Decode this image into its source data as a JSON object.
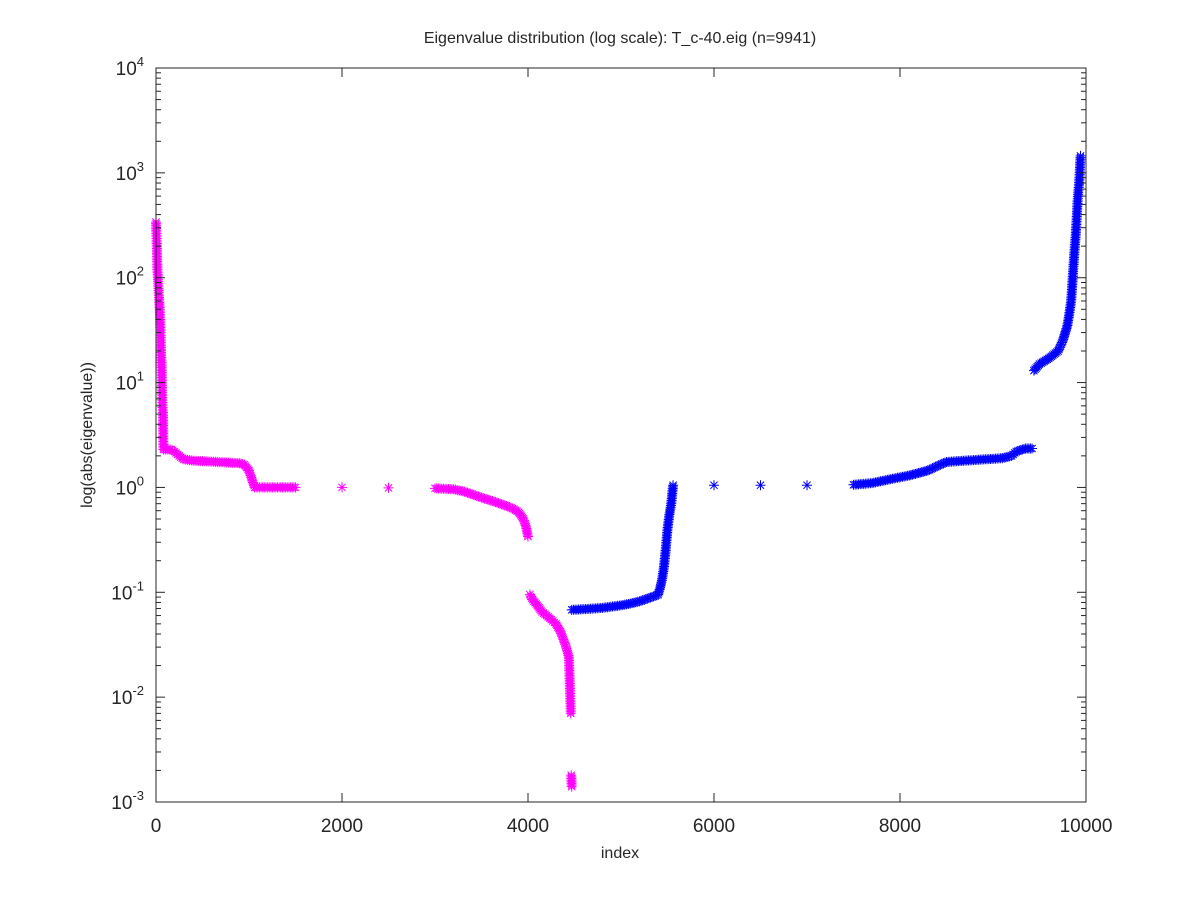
{
  "chart_data": {
    "type": "scatter",
    "title": "Eigenvalue distribution (log scale): T_c-40.eig (n=9941)",
    "xlabel": "index",
    "ylabel": "log(abs(eigenvalue))",
    "xlim": [
      0,
      10000
    ],
    "ylim": [
      0.001,
      10000
    ],
    "yscale": "log",
    "marker": "asterisk",
    "grid": false,
    "legend": "none",
    "xticks": [
      {
        "value": 0,
        "label": "0"
      },
      {
        "value": 2000,
        "label": "2000"
      },
      {
        "value": 4000,
        "label": "4000"
      },
      {
        "value": 6000,
        "label": "6000"
      },
      {
        "value": 8000,
        "label": "8000"
      },
      {
        "value": 10000,
        "label": "10000"
      }
    ],
    "yticks": [
      {
        "value": 0.001,
        "base": "10",
        "exp": "-3"
      },
      {
        "value": 0.01,
        "base": "10",
        "exp": "-2"
      },
      {
        "value": 0.1,
        "base": "10",
        "exp": "-1"
      },
      {
        "value": 1,
        "base": "10",
        "exp": "0"
      },
      {
        "value": 10,
        "base": "10",
        "exp": "1"
      },
      {
        "value": 100,
        "base": "10",
        "exp": "2"
      },
      {
        "value": 1000,
        "base": "10",
        "exp": "3"
      },
      {
        "value": 10000,
        "base": "10",
        "exp": "4"
      }
    ],
    "series": [
      {
        "color": "#ff00ff",
        "points": [
          [
            0,
            340
          ],
          [
            10,
            190
          ],
          [
            15,
            120
          ],
          [
            20,
            100
          ],
          [
            25,
            85
          ],
          [
            30,
            70
          ],
          [
            35,
            60
          ],
          [
            40,
            50
          ],
          [
            45,
            40
          ],
          [
            50,
            28
          ],
          [
            55,
            18
          ],
          [
            60,
            15
          ],
          [
            65,
            9
          ],
          [
            70,
            6
          ],
          [
            75,
            5
          ],
          [
            80,
            2.3
          ],
          [
            120,
            2.3
          ],
          [
            160,
            2.3
          ],
          [
            200,
            2.2
          ],
          [
            250,
            2.0
          ],
          [
            300,
            1.85
          ],
          [
            400,
            1.8
          ],
          [
            500,
            1.78
          ],
          [
            600,
            1.76
          ],
          [
            700,
            1.74
          ],
          [
            800,
            1.72
          ],
          [
            900,
            1.7
          ],
          [
            950,
            1.65
          ],
          [
            1000,
            1.45
          ],
          [
            1030,
            1.2
          ],
          [
            1060,
            1.0
          ],
          [
            1200,
            1.0
          ],
          [
            1500,
            1.0
          ],
          [
            2000,
            1.0
          ],
          [
            2500,
            0.99
          ],
          [
            3000,
            0.98
          ],
          [
            3200,
            0.96
          ],
          [
            3300,
            0.92
          ],
          [
            3400,
            0.86
          ],
          [
            3500,
            0.8
          ],
          [
            3600,
            0.75
          ],
          [
            3700,
            0.7
          ],
          [
            3800,
            0.65
          ],
          [
            3850,
            0.62
          ],
          [
            3900,
            0.58
          ],
          [
            3950,
            0.5
          ],
          [
            3980,
            0.42
          ],
          [
            4000,
            0.34
          ],
          [
            4020,
            0.095
          ],
          [
            4050,
            0.085
          ],
          [
            4100,
            0.075
          ],
          [
            4150,
            0.065
          ],
          [
            4200,
            0.06
          ],
          [
            4250,
            0.055
          ],
          [
            4300,
            0.05
          ],
          [
            4350,
            0.042
          ],
          [
            4400,
            0.032
          ],
          [
            4420,
            0.028
          ],
          [
            4440,
            0.024
          ],
          [
            4450,
            0.013
          ],
          [
            4460,
            0.007
          ],
          [
            4465,
            0.0018
          ],
          [
            4470,
            0.0014
          ]
        ]
      },
      {
        "color": "#0000ff",
        "points": [
          [
            4470,
            0.068
          ],
          [
            4600,
            0.069
          ],
          [
            4800,
            0.071
          ],
          [
            5000,
            0.075
          ],
          [
            5100,
            0.078
          ],
          [
            5200,
            0.082
          ],
          [
            5300,
            0.088
          ],
          [
            5400,
            0.095
          ],
          [
            5420,
            0.11
          ],
          [
            5440,
            0.13
          ],
          [
            5460,
            0.17
          ],
          [
            5480,
            0.25
          ],
          [
            5500,
            0.4
          ],
          [
            5520,
            0.55
          ],
          [
            5540,
            0.7
          ],
          [
            5560,
            1.05
          ],
          [
            6000,
            1.05
          ],
          [
            6500,
            1.05
          ],
          [
            7000,
            1.05
          ],
          [
            7500,
            1.06
          ],
          [
            7700,
            1.1
          ],
          [
            7900,
            1.2
          ],
          [
            8100,
            1.3
          ],
          [
            8300,
            1.45
          ],
          [
            8400,
            1.6
          ],
          [
            8500,
            1.75
          ],
          [
            8700,
            1.8
          ],
          [
            8900,
            1.85
          ],
          [
            9100,
            1.9
          ],
          [
            9200,
            2.0
          ],
          [
            9250,
            2.2
          ],
          [
            9350,
            2.35
          ],
          [
            9420,
            2.35
          ],
          [
            9440,
            13
          ],
          [
            9500,
            15
          ],
          [
            9600,
            17
          ],
          [
            9700,
            20
          ],
          [
            9750,
            25
          ],
          [
            9800,
            35
          ],
          [
            9820,
            45
          ],
          [
            9840,
            60
          ],
          [
            9850,
            80
          ],
          [
            9860,
            110
          ],
          [
            9870,
            150
          ],
          [
            9880,
            200
          ],
          [
            9890,
            260
          ],
          [
            9900,
            370
          ],
          [
            9910,
            550
          ],
          [
            9920,
            700
          ],
          [
            9930,
            900
          ],
          [
            9941,
            1450
          ]
        ]
      }
    ]
  }
}
